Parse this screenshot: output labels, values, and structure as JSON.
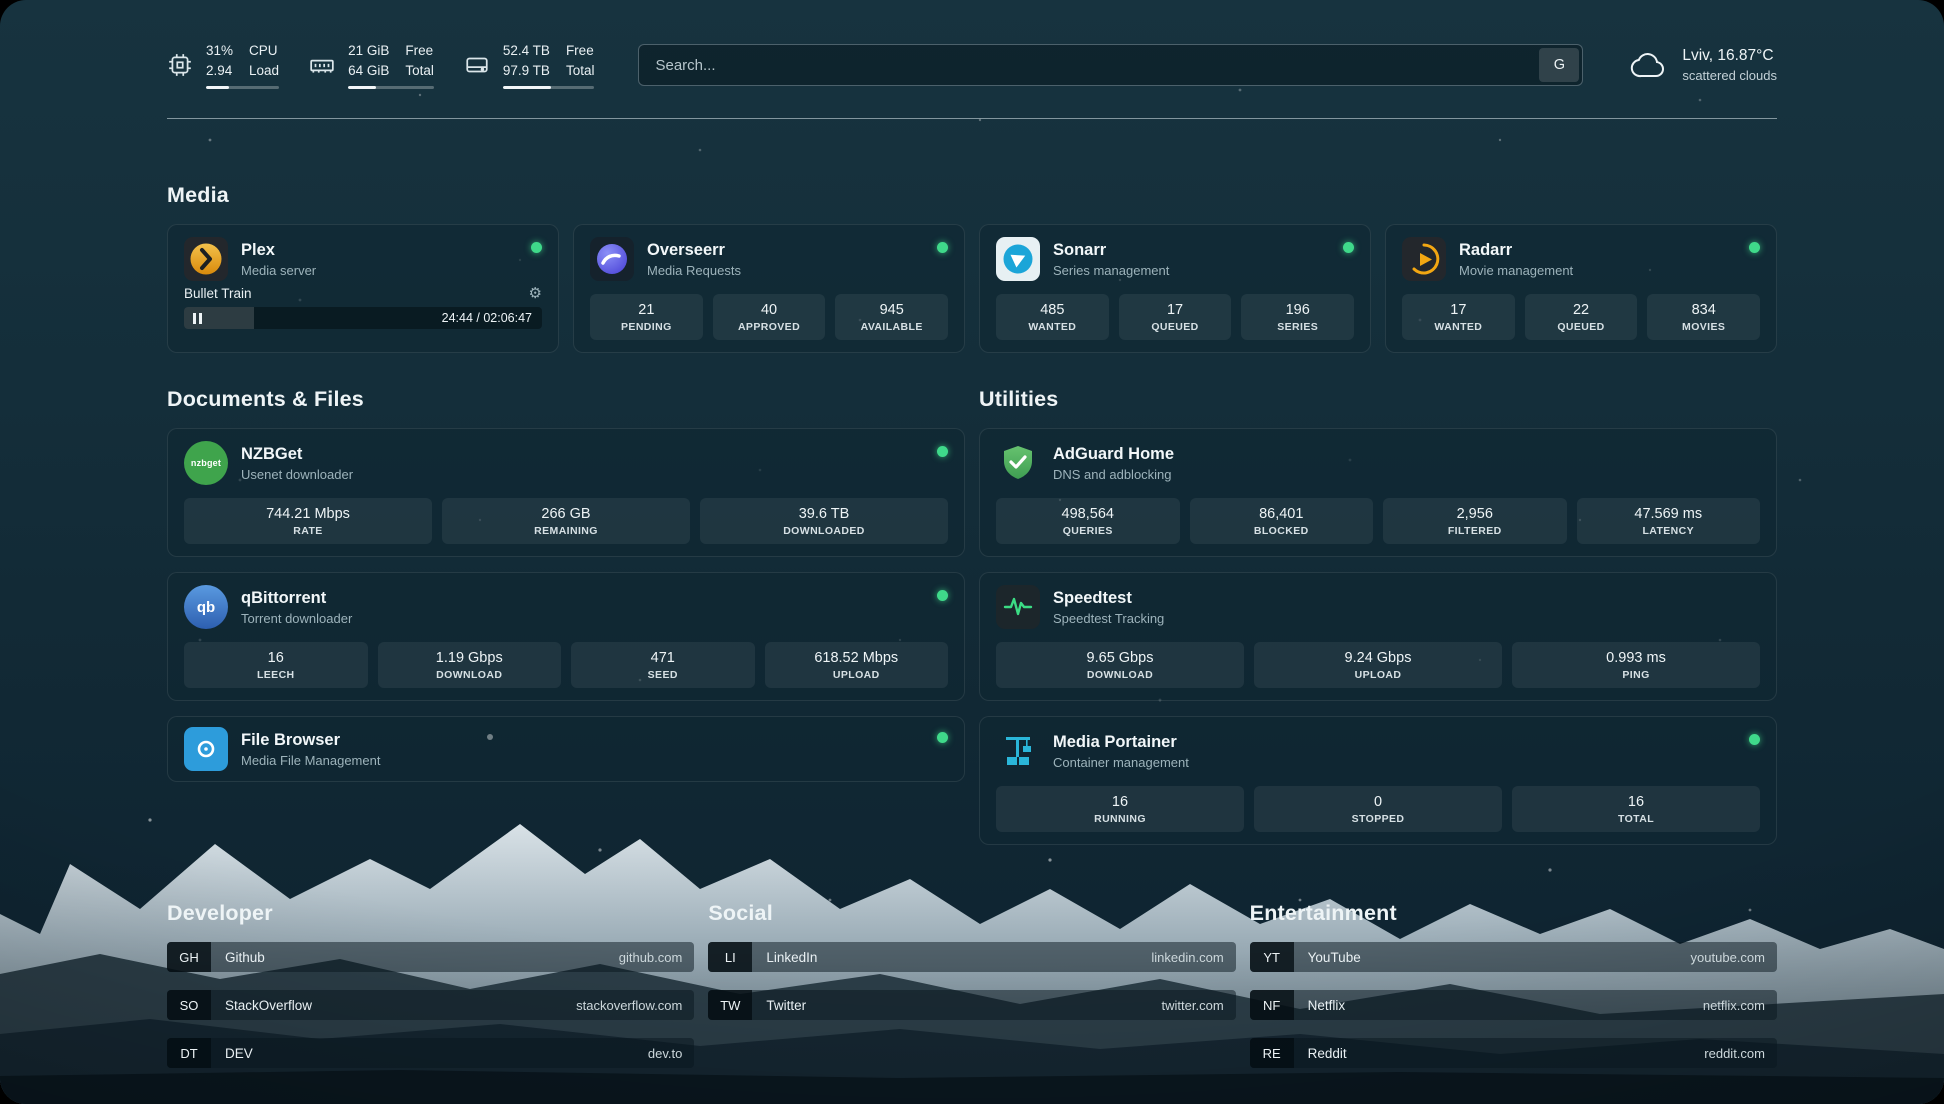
{
  "header": {
    "cpu": {
      "value1": "31%",
      "value2": "2.94",
      "label1": "CPU",
      "label2": "Load",
      "bar": 31
    },
    "ram": {
      "value1": "21 GiB",
      "value2": "64 GiB",
      "label1": "Free",
      "label2": "Total",
      "bar": 33
    },
    "disk": {
      "value1": "52.4 TB",
      "value2": "97.9 TB",
      "label1": "Free",
      "label2": "Total",
      "bar": 53
    },
    "search": {
      "placeholder": "Search...",
      "engine_button": "G"
    },
    "weather": {
      "location": "Lviv, 16.87°C",
      "condition": "scattered clouds"
    }
  },
  "sections": {
    "media": {
      "title": "Media",
      "apps": [
        {
          "name": "Plex",
          "desc": "Media server",
          "now_playing": {
            "title": "Bullet Train",
            "time": "24:44 / 02:06:47",
            "progress": 19.5
          }
        },
        {
          "name": "Overseerr",
          "desc": "Media Requests",
          "stats": [
            {
              "value": "21",
              "label": "PENDING"
            },
            {
              "value": "40",
              "label": "APPROVED"
            },
            {
              "value": "945",
              "label": "AVAILABLE"
            }
          ]
        },
        {
          "name": "Sonarr",
          "desc": "Series management",
          "stats": [
            {
              "value": "485",
              "label": "WANTED"
            },
            {
              "value": "17",
              "label": "QUEUED"
            },
            {
              "value": "196",
              "label": "SERIES"
            }
          ]
        },
        {
          "name": "Radarr",
          "desc": "Movie management",
          "stats": [
            {
              "value": "17",
              "label": "WANTED"
            },
            {
              "value": "22",
              "label": "QUEUED"
            },
            {
              "value": "834",
              "label": "MOVIES"
            }
          ]
        }
      ]
    },
    "documents": {
      "title": "Documents & Files",
      "apps": [
        {
          "name": "NZBGet",
          "desc": "Usenet downloader",
          "stats": [
            {
              "value": "744.21 Mbps",
              "label": "RATE"
            },
            {
              "value": "266 GB",
              "label": "REMAINING"
            },
            {
              "value": "39.6 TB",
              "label": "DOWNLOADED"
            }
          ]
        },
        {
          "name": "qBittorrent",
          "desc": "Torrent downloader",
          "stats": [
            {
              "value": "16",
              "label": "LEECH"
            },
            {
              "value": "1.19 Gbps",
              "label": "DOWNLOAD"
            },
            {
              "value": "471",
              "label": "SEED"
            },
            {
              "value": "618.52 Mbps",
              "label": "UPLOAD"
            }
          ]
        },
        {
          "name": "File Browser",
          "desc": "Media File Management"
        }
      ]
    },
    "utilities": {
      "title": "Utilities",
      "apps": [
        {
          "name": "AdGuard Home",
          "desc": "DNS and adblocking",
          "stats": [
            {
              "value": "498,564",
              "label": "QUERIES"
            },
            {
              "value": "86,401",
              "label": "BLOCKED"
            },
            {
              "value": "2,956",
              "label": "FILTERED"
            },
            {
              "value": "47.569 ms",
              "label": "LATENCY"
            }
          ]
        },
        {
          "name": "Speedtest",
          "desc": "Speedtest Tracking",
          "stats": [
            {
              "value": "9.65 Gbps",
              "label": "DOWNLOAD"
            },
            {
              "value": "9.24 Gbps",
              "label": "UPLOAD"
            },
            {
              "value": "0.993 ms",
              "label": "PING"
            }
          ]
        },
        {
          "name": "Media Portainer",
          "desc": "Container management",
          "stats": [
            {
              "value": "16",
              "label": "RUNNING"
            },
            {
              "value": "0",
              "label": "STOPPED"
            },
            {
              "value": "16",
              "label": "TOTAL"
            }
          ]
        }
      ]
    }
  },
  "bookmarks": [
    {
      "title": "Developer",
      "items": [
        {
          "abbr": "GH",
          "name": "Github",
          "url": "github.com"
        },
        {
          "abbr": "SO",
          "name": "StackOverflow",
          "url": "stackoverflow.com"
        },
        {
          "abbr": "DT",
          "name": "DEV",
          "url": "dev.to"
        }
      ]
    },
    {
      "title": "Social",
      "items": [
        {
          "abbr": "LI",
          "name": "LinkedIn",
          "url": "linkedin.com"
        },
        {
          "abbr": "TW",
          "name": "Twitter",
          "url": "twitter.com"
        }
      ]
    },
    {
      "title": "Entertainment",
      "items": [
        {
          "abbr": "YT",
          "name": "YouTube",
          "url": "youtube.com"
        },
        {
          "abbr": "NF",
          "name": "Netflix",
          "url": "netflix.com"
        },
        {
          "abbr": "RE",
          "name": "Reddit",
          "url": "reddit.com"
        }
      ]
    }
  ],
  "colors": {
    "status_online": "#3fd98a",
    "accent_green": "#3bdc84"
  }
}
